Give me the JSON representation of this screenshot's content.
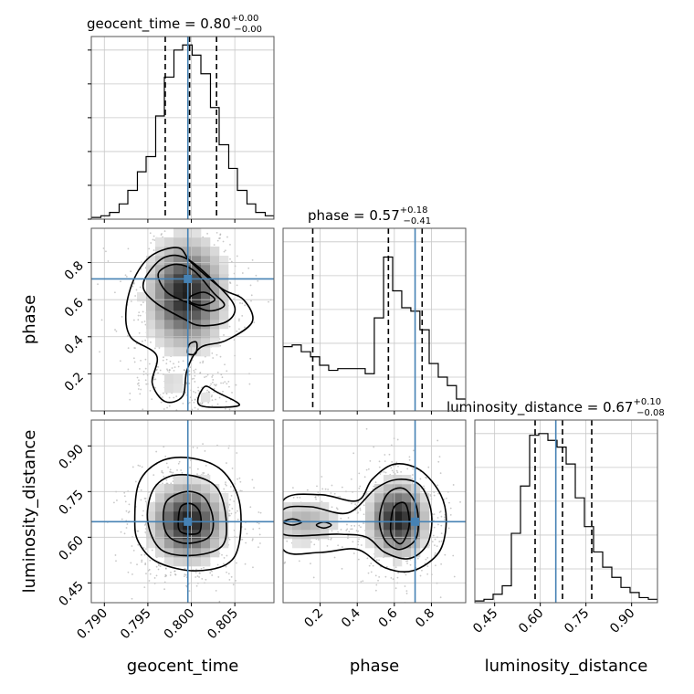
{
  "chart_data": {
    "type": "corner",
    "truth_color": "#4682b4",
    "panels": [
      {
        "id": "geocent_time",
        "title": "geocent_time",
        "median": "0.80",
        "plus": "+0.00",
        "minus": "−0.00",
        "xlabel": "geocent_time",
        "truth": 0.7996,
        "quantiles": [
          0.797,
          0.7998,
          0.8029
        ],
        "xlim": [
          0.7885,
          0.8095
        ],
        "ylim": [
          0,
          1.08
        ],
        "xticks": [
          {
            "v": 0.79,
            "l": "0.790"
          },
          {
            "v": 0.795,
            "l": "0.795"
          },
          {
            "v": 0.8,
            "l": "0.800"
          },
          {
            "v": 0.805,
            "l": "0.805"
          }
        ],
        "hist": {
          "edges": [
            0.7885,
            0.7896,
            0.7906,
            0.7917,
            0.7927,
            0.7938,
            0.7948,
            0.7959,
            0.7969,
            0.798,
            0.799,
            0.8001,
            0.8011,
            0.8022,
            0.8032,
            0.8043,
            0.8053,
            0.8064,
            0.8074,
            0.8085,
            0.8095
          ],
          "counts": [
            0.01,
            0.02,
            0.04,
            0.09,
            0.17,
            0.28,
            0.37,
            0.61,
            0.84,
            1.0,
            1.03,
            0.97,
            0.86,
            0.66,
            0.44,
            0.3,
            0.17,
            0.09,
            0.04,
            0.02
          ]
        }
      },
      {
        "id": "phase",
        "title": "phase",
        "median": "0.57",
        "plus": "+0.18",
        "minus": "−0.41",
        "xlabel": "phase",
        "ylabel": "phase",
        "truth": 0.712,
        "quantiles": [
          0.16,
          0.568,
          0.75
        ],
        "xlim": [
          0.0,
          0.985
        ],
        "ylim": [
          0,
          1.08
        ],
        "xticks": [
          {
            "v": 0.2,
            "l": "0.2"
          },
          {
            "v": 0.4,
            "l": "0.4"
          },
          {
            "v": 0.6,
            "l": "0.6"
          },
          {
            "v": 0.8,
            "l": "0.8"
          }
        ],
        "yticks": [
          {
            "v": 0.2,
            "l": "0.2"
          },
          {
            "v": 0.4,
            "l": "0.4"
          },
          {
            "v": 0.6,
            "l": "0.6"
          },
          {
            "v": 0.8,
            "l": "0.8"
          }
        ],
        "hist": {
          "edges": [
            0.0,
            0.049,
            0.098,
            0.148,
            0.197,
            0.246,
            0.295,
            0.345,
            0.394,
            0.443,
            0.492,
            0.542,
            0.591,
            0.64,
            0.689,
            0.738,
            0.788,
            0.837,
            0.886,
            0.935,
            0.985
          ],
          "counts": [
            0.38,
            0.39,
            0.35,
            0.32,
            0.27,
            0.24,
            0.25,
            0.25,
            0.25,
            0.22,
            0.55,
            0.91,
            0.71,
            0.61,
            0.59,
            0.48,
            0.28,
            0.2,
            0.15,
            0.07
          ]
        }
      },
      {
        "id": "luminosity_distance",
        "title": "luminosity_distance",
        "median": "0.67",
        "plus": "+0.10",
        "minus": "−0.08",
        "xlabel": "luminosity_distance",
        "ylabel": "luminosity_distance",
        "truth": 0.651,
        "quantiles": [
          0.583,
          0.673,
          0.769
        ],
        "xlim": [
          0.385,
          0.985
        ],
        "ylim": [
          0,
          1.08
        ],
        "xticks": [
          {
            "v": 0.45,
            "l": "0.45"
          },
          {
            "v": 0.6,
            "l": "0.60"
          },
          {
            "v": 0.75,
            "l": "0.75"
          },
          {
            "v": 0.9,
            "l": "0.90"
          }
        ],
        "yticks": [
          {
            "v": 0.45,
            "l": "0.45"
          },
          {
            "v": 0.6,
            "l": "0.60"
          },
          {
            "v": 0.75,
            "l": "0.75"
          },
          {
            "v": 0.9,
            "l": "0.90"
          }
        ],
        "hist": {
          "edges": [
            0.385,
            0.415,
            0.445,
            0.475,
            0.505,
            0.535,
            0.565,
            0.595,
            0.625,
            0.655,
            0.685,
            0.715,
            0.745,
            0.775,
            0.805,
            0.835,
            0.865,
            0.895,
            0.925,
            0.955,
            0.985
          ],
          "counts": [
            0.01,
            0.02,
            0.05,
            0.1,
            0.41,
            0.69,
            0.99,
            1.0,
            0.96,
            0.92,
            0.82,
            0.62,
            0.45,
            0.3,
            0.21,
            0.15,
            0.09,
            0.06,
            0.03,
            0.02
          ]
        }
      }
    ],
    "joint_panels": [
      {
        "x": "geocent_time",
        "y": "phase",
        "truth": [
          0.7996,
          0.712
        ],
        "ylim": [
          0.0,
          0.985
        ],
        "blobs": [
          {
            "x": 0.7994,
            "y": 0.63,
            "sx": 0.0025,
            "sy": 0.17,
            "w": 1.0
          },
          {
            "x": 0.7975,
            "y": 0.15,
            "sx": 0.0015,
            "sy": 0.06,
            "w": 0.15
          },
          {
            "x": 0.802,
            "y": 0.08,
            "sx": 0.0015,
            "sy": 0.05,
            "w": 0.12
          }
        ],
        "contours": [
          [
            [
              0.7935,
              0.72
            ],
            [
              0.7955,
              0.84
            ],
            [
              0.7985,
              0.88
            ],
            [
              0.8,
              0.8
            ],
            [
              0.8035,
              0.66
            ],
            [
              0.806,
              0.6
            ],
            [
              0.807,
              0.48
            ],
            [
              0.804,
              0.38
            ],
            [
              0.801,
              0.34
            ],
            [
              0.7995,
              0.22
            ],
            [
              0.799,
              0.08
            ],
            [
              0.797,
              0.05
            ],
            [
              0.7955,
              0.15
            ],
            [
              0.796,
              0.3
            ],
            [
              0.793,
              0.4
            ],
            [
              0.7925,
              0.55
            ]
          ],
          [
            [
              0.795,
              0.74
            ],
            [
              0.797,
              0.83
            ],
            [
              0.7995,
              0.82
            ],
            [
              0.803,
              0.68
            ],
            [
              0.805,
              0.56
            ],
            [
              0.804,
              0.48
            ],
            [
              0.801,
              0.46
            ],
            [
              0.799,
              0.5
            ],
            [
              0.796,
              0.58
            ],
            [
              0.7945,
              0.66
            ]
          ],
          [
            [
              0.7962,
              0.74
            ],
            [
              0.798,
              0.79
            ],
            [
              0.8002,
              0.76
            ],
            [
              0.8025,
              0.64
            ],
            [
              0.8038,
              0.57
            ],
            [
              0.802,
              0.54
            ],
            [
              0.7998,
              0.58
            ],
            [
              0.7972,
              0.64
            ]
          ],
          [
            [
              0.8,
              0.62
            ],
            [
              0.8015,
              0.64
            ],
            [
              0.8027,
              0.6
            ],
            [
              0.8012,
              0.57
            ],
            [
              0.7998,
              0.59
            ]
          ],
          [
            [
              0.7998,
              0.36
            ],
            [
              0.8006,
              0.37
            ],
            [
              0.8005,
              0.31
            ],
            [
              0.7996,
              0.31
            ]
          ],
          [
            [
              0.8015,
              0.13
            ],
            [
              0.803,
              0.1
            ],
            [
              0.8055,
              0.03
            ],
            [
              0.801,
              0.03
            ]
          ]
        ]
      },
      {
        "x": "geocent_time",
        "y": "luminosity_distance",
        "truth": [
          0.7996,
          0.651
        ],
        "ylim": [
          0.385,
          0.985
        ],
        "blobs": [
          {
            "x": 0.7996,
            "y": 0.65,
            "sx": 0.0024,
            "sy": 0.075,
            "w": 1.0
          }
        ],
        "contours": [
          [
            [
              0.7935,
              0.65
            ],
            [
              0.794,
              0.78
            ],
            [
              0.7965,
              0.85
            ],
            [
              0.8,
              0.86
            ],
            [
              0.8035,
              0.82
            ],
            [
              0.8055,
              0.72
            ],
            [
              0.8055,
              0.58
            ],
            [
              0.804,
              0.51
            ],
            [
              0.8,
              0.49
            ],
            [
              0.796,
              0.52
            ],
            [
              0.794,
              0.58
            ]
          ],
          [
            [
              0.795,
              0.65
            ],
            [
              0.7955,
              0.75
            ],
            [
              0.7975,
              0.8
            ],
            [
              0.8005,
              0.8
            ],
            [
              0.803,
              0.76
            ],
            [
              0.804,
              0.66
            ],
            [
              0.8035,
              0.57
            ],
            [
              0.8,
              0.54
            ],
            [
              0.7965,
              0.56
            ]
          ],
          [
            [
              0.7968,
              0.65
            ],
            [
              0.7972,
              0.72
            ],
            [
              0.7995,
              0.75
            ],
            [
              0.8015,
              0.73
            ],
            [
              0.8025,
              0.66
            ],
            [
              0.802,
              0.6
            ],
            [
              0.7995,
              0.58
            ],
            [
              0.7975,
              0.6
            ]
          ],
          [
            [
              0.7985,
              0.65
            ],
            [
              0.7988,
              0.7
            ],
            [
              0.8,
              0.71
            ],
            [
              0.801,
              0.68
            ],
            [
              0.801,
              0.62
            ],
            [
              0.7998,
              0.61
            ],
            [
              0.7987,
              0.62
            ]
          ]
        ]
      },
      {
        "x": "phase",
        "y": "luminosity_distance",
        "truth": [
          0.712,
          0.651
        ],
        "ylim": [
          0.385,
          0.985
        ],
        "blobs": [
          {
            "x": 0.62,
            "y": 0.66,
            "sx": 0.09,
            "sy": 0.07,
            "w": 1.0
          },
          {
            "x": 0.12,
            "y": 0.65,
            "sx": 0.12,
            "sy": 0.05,
            "w": 0.35
          }
        ],
        "contours": [
          [
            [
              0.0,
              0.72
            ],
            [
              0.2,
              0.74
            ],
            [
              0.4,
              0.72
            ],
            [
              0.48,
              0.79
            ],
            [
              0.6,
              0.84
            ],
            [
              0.74,
              0.82
            ],
            [
              0.85,
              0.74
            ],
            [
              0.88,
              0.65
            ],
            [
              0.84,
              0.55
            ],
            [
              0.7,
              0.49
            ],
            [
              0.55,
              0.5
            ],
            [
              0.4,
              0.56
            ],
            [
              0.2,
              0.55
            ],
            [
              0.0,
              0.56
            ]
          ],
          [
            [
              0.0,
              0.69
            ],
            [
              0.15,
              0.7
            ],
            [
              0.35,
              0.68
            ],
            [
              0.5,
              0.76
            ],
            [
              0.62,
              0.79
            ],
            [
              0.74,
              0.77
            ],
            [
              0.8,
              0.68
            ],
            [
              0.78,
              0.58
            ],
            [
              0.68,
              0.53
            ],
            [
              0.55,
              0.55
            ],
            [
              0.45,
              0.6
            ],
            [
              0.3,
              0.61
            ],
            [
              0.0,
              0.61
            ]
          ],
          [
            [
              0.52,
              0.66
            ],
            [
              0.56,
              0.74
            ],
            [
              0.65,
              0.76
            ],
            [
              0.72,
              0.7
            ],
            [
              0.72,
              0.6
            ],
            [
              0.63,
              0.56
            ],
            [
              0.55,
              0.59
            ]
          ],
          [
            [
              0.58,
              0.64
            ],
            [
              0.6,
              0.7
            ],
            [
              0.66,
              0.71
            ],
            [
              0.68,
              0.64
            ],
            [
              0.64,
              0.58
            ],
            [
              0.59,
              0.6
            ]
          ],
          [
            [
              0.0,
              0.65
            ],
            [
              0.05,
              0.66
            ],
            [
              0.1,
              0.65
            ],
            [
              0.05,
              0.64
            ]
          ],
          [
            [
              0.18,
              0.64
            ],
            [
              0.22,
              0.65
            ],
            [
              0.26,
              0.64
            ],
            [
              0.22,
              0.63
            ]
          ]
        ]
      }
    ]
  }
}
